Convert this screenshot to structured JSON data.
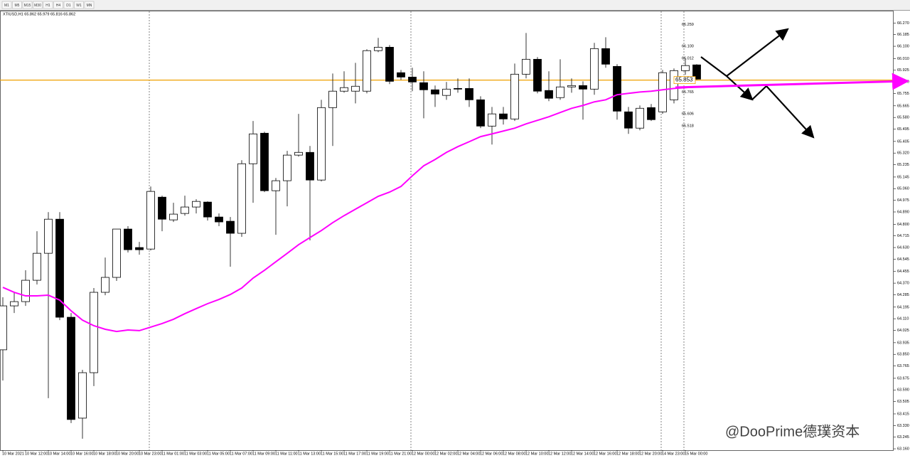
{
  "toolbar": {
    "timeframes": [
      "M1",
      "M5",
      "M15",
      "M30",
      "H1",
      "H4",
      "D1",
      "W1",
      "MN"
    ]
  },
  "chart_data": {
    "type": "candlestick",
    "title": "XTIUSD,H1 65.862 65.979 65.816 65.862",
    "watermark": "@DooPrime德璞资本",
    "categories": [
      "10 Mar 2021",
      null,
      "10 Mar 12:00",
      null,
      "10 Mar 14:00",
      null,
      "10 Mar 16:00",
      null,
      "10 Mar 18:00",
      null,
      "10 Mar 20:00",
      null,
      "10 Mar 23:00",
      null,
      "11 Mar 01:00",
      null,
      "11 Mar 03:00",
      null,
      "11 Mar 05:00",
      null,
      "11 Mar 07:00",
      null,
      "11 Mar 09:00",
      null,
      "11 Mar 11:00",
      null,
      "11 Mar 13:00",
      null,
      "11 Mar 15:00",
      null,
      "11 Mar 17:00",
      null,
      "11 Mar 19:00",
      null,
      "11 Mar 21:00",
      null,
      "12 Mar 00:00",
      null,
      "12 Mar 02:00",
      null,
      "12 Mar 04:00",
      null,
      "12 Mar 06:00",
      null,
      "12 Mar 08:00",
      null,
      "12 Mar 10:00",
      null,
      "12 Mar 12:00",
      null,
      "12 Mar 14:00",
      null,
      "12 Mar 16:00",
      null,
      "12 Mar 18:00",
      null,
      "12 Mar 20:00",
      null,
      "14 Mar 23:00",
      null,
      "15 Mar 00:00",
      null
    ],
    "open": [
      63.883,
      64.204,
      64.235,
      64.391,
      64.588,
      64.837,
      64.121,
      63.384,
      63.716,
      64.303,
      64.412,
      64.765,
      64.63,
      64.619,
      64.998,
      64.832,
      64.879,
      64.926,
      64.962,
      64.853,
      64.822,
      64.734,
      65.242,
      65.465,
      65.045,
      65.118,
      65.305,
      65.325,
      65.123,
      65.652,
      65.772,
      65.772,
      65.772,
      66.068,
      66.093,
      65.907,
      65.875,
      65.834,
      65.782,
      65.741,
      65.792,
      65.792,
      65.709,
      65.517,
      65.606,
      65.569,
      65.896,
      66.005,
      65.777,
      65.725,
      65.803,
      65.813,
      65.787,
      66.083,
      65.953,
      65.621,
      65.502,
      65.652,
      65.621,
      65.709,
      65.922,
      65.964
    ],
    "high": [
      64.267,
      64.308,
      64.464,
      64.749,
      64.889,
      64.889,
      64.152,
      63.737,
      64.334,
      64.557,
      64.765,
      64.786,
      64.671,
      65.076,
      65.009,
      64.957,
      65.009,
      64.983,
      64.967,
      64.879,
      64.853,
      65.268,
      65.554,
      65.476,
      65.138,
      65.336,
      65.606,
      65.372,
      65.709,
      65.901,
      65.917,
      65.979,
      66.078,
      66.161,
      66.109,
      65.927,
      65.943,
      65.917,
      65.813,
      65.839,
      65.865,
      65.865,
      65.735,
      65.657,
      65.657,
      65.974,
      66.197,
      66.021,
      65.917,
      66.005,
      65.865,
      65.844,
      66.125,
      66.166,
      65.969,
      65.657,
      65.668,
      65.678,
      65.927,
      65.938,
      66.01,
      65.969
    ],
    "low": [
      63.659,
      64.152,
      64.204,
      64.36,
      63.53,
      64.1,
      63.348,
      63.234,
      63.618,
      64.282,
      64.386,
      64.594,
      64.578,
      64.609,
      64.749,
      64.817,
      64.863,
      64.879,
      64.827,
      64.786,
      64.49,
      64.708,
      64.957,
      65.035,
      64.723,
      64.931,
      65.294,
      64.682,
      65.113,
      65.372,
      65.761,
      65.683,
      65.756,
      66.057,
      65.824,
      65.855,
      65.772,
      65.574,
      65.657,
      65.709,
      65.761,
      65.657,
      65.502,
      65.382,
      65.528,
      65.554,
      65.865,
      65.756,
      65.699,
      65.709,
      65.761,
      65.564,
      65.746,
      65.943,
      65.564,
      65.46,
      65.486,
      65.554,
      65.606,
      65.683,
      65.891,
      65.855
    ],
    "close": [
      64.204,
      64.235,
      64.391,
      64.588,
      64.837,
      64.121,
      63.374,
      63.716,
      64.303,
      64.412,
      64.765,
      64.614,
      64.614,
      65.04,
      64.837,
      64.874,
      64.926,
      64.967,
      64.853,
      64.817,
      64.734,
      65.242,
      65.46,
      65.045,
      65.118,
      65.305,
      65.325,
      65.123,
      65.652,
      65.772,
      65.798,
      65.808,
      66.068,
      66.093,
      65.844,
      65.875,
      65.839,
      65.782,
      65.751,
      65.787,
      65.787,
      65.709,
      65.517,
      65.606,
      65.569,
      65.896,
      66.005,
      65.772,
      65.72,
      65.803,
      65.813,
      65.787,
      66.083,
      65.969,
      65.626,
      65.502,
      65.647,
      65.564,
      65.907,
      65.922,
      65.959,
      65.86
    ],
    "series": [
      {
        "color": "#ff00ff",
        "values": [
          64.339,
          64.303,
          64.277,
          64.277,
          64.282,
          64.246,
          64.168,
          64.1,
          64.059,
          64.033,
          64.017,
          64.028,
          64.023,
          64.049,
          64.075,
          64.106,
          64.147,
          64.184,
          64.22,
          64.251,
          64.287,
          64.334,
          64.407,
          64.464,
          64.526,
          64.588,
          64.651,
          64.703,
          64.754,
          64.812,
          64.863,
          64.91,
          64.957,
          65.004,
          65.035,
          65.076,
          65.154,
          65.227,
          65.273,
          65.325,
          65.367,
          65.403,
          65.44,
          65.46,
          65.481,
          65.502,
          65.533,
          65.559,
          65.585,
          65.616,
          65.647,
          65.668,
          65.694,
          65.709,
          65.746,
          65.756,
          65.766,
          65.772,
          65.782,
          65.792,
          65.798,
          65.803
        ]
      }
    ],
    "price_line": {
      "value": 65.853,
      "color": "#f0a000"
    },
    "price_labels": [
      66.259,
      {
        "value": 66.1,
        "label": "66.100"
      },
      66.012,
      65.765,
      65.606,
      65.518
    ],
    "ylim": [
      63.15,
      66.36
    ],
    "yticks": [
      {
        "value": 66.27,
        "label": "66.270"
      },
      66.185,
      {
        "value": 66.1,
        "label": "66.100"
      },
      {
        "value": 66.01,
        "label": "66.010"
      },
      65.925,
      {
        "value": 65.84,
        "label": "65.840"
      },
      65.755,
      65.665,
      {
        "value": 65.58,
        "label": "65.580"
      },
      65.495,
      65.405,
      {
        "value": 65.32,
        "label": "65.320"
      },
      65.235,
      65.145,
      {
        "value": 65.06,
        "label": "65.060"
      },
      64.975,
      {
        "value": 64.89,
        "label": "64.890"
      },
      {
        "value": 64.8,
        "label": "64.800"
      },
      64.715,
      {
        "value": 64.63,
        "label": "64.630"
      },
      64.545,
      64.455,
      {
        "value": 64.37,
        "label": "64.370"
      },
      64.285,
      64.195,
      {
        "value": 64.11,
        "label": "64.110"
      },
      64.025,
      63.935,
      {
        "value": 63.85,
        "label": "63.850"
      },
      63.765,
      63.675,
      {
        "value": 63.59,
        "label": "63.590"
      },
      63.505,
      63.415,
      {
        "value": 63.33,
        "label": "63.330"
      },
      63.245,
      {
        "value": 63.16,
        "label": "63.160"
      }
    ],
    "grid": false
  }
}
